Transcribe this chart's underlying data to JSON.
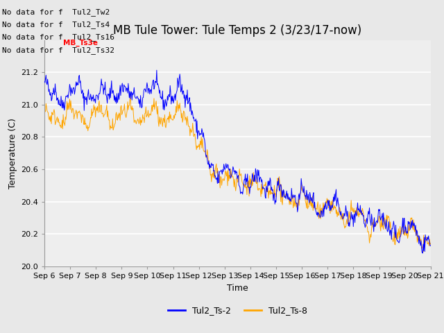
{
  "title": "MB Tule Tower: Tule Temps 2 (3/23/17-now)",
  "xlabel": "Time",
  "ylabel": "Temperature (C)",
  "ylim": [
    20.0,
    21.4
  ],
  "yticks": [
    20.0,
    20.2,
    20.4,
    20.6,
    20.8,
    21.0,
    21.2
  ],
  "xtick_labels": [
    "Sep 6",
    "Sep 7",
    "Sep 8",
    "Sep 9",
    "Sep 10",
    "Sep 11",
    "Sep 12",
    "Sep 13",
    "Sep 14",
    "Sep 15",
    "Sep 16",
    "Sep 17",
    "Sep 18",
    "Sep 19",
    "Sep 20",
    "Sep 21"
  ],
  "color_ts2": "#0000ff",
  "color_ts8": "#ffa500",
  "legend_labels": [
    "Tul2_Ts-2",
    "Tul2_Ts-8"
  ],
  "no_data_texts": [
    "No data for f  Tul2_Tw2",
    "No data for f  Tul2_Ts4",
    "No data for f  Tul2_Ts16",
    "No data for f  Tul2_Ts32"
  ],
  "tooltip_text": "MB_Ts3e",
  "background_color": "#e8e8e8",
  "plot_bg_color": "#eeeeee",
  "grid_color": "#ffffff",
  "font_size_title": 12,
  "font_size_labels": 9,
  "font_size_ticks": 8,
  "font_size_legend": 9,
  "font_size_nodata": 8
}
